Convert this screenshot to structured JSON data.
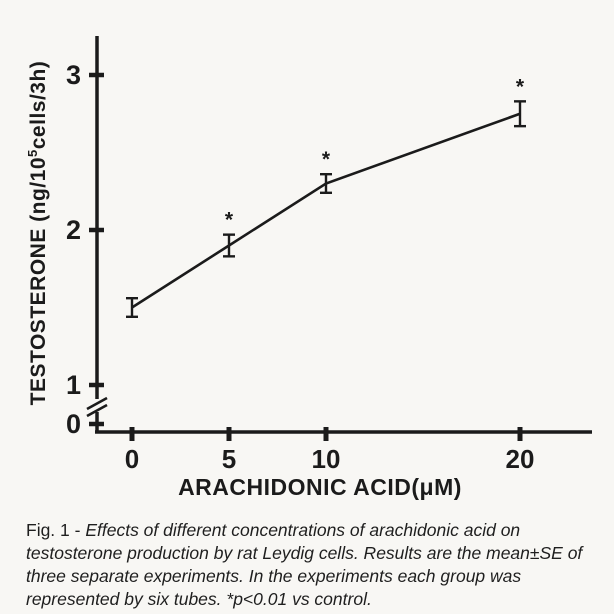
{
  "figure": {
    "caption_prefix": "Fig. 1 - ",
    "caption_text": "Effects of different concentrations of arachidonic acid on testosterone production by rat Leydig cells. Results are the mean±SE of three separate experiments. In the experiments each group was represented by six tubes. *p<0.01 vs control."
  },
  "chart_data": {
    "type": "line",
    "title": "",
    "xlabel": "ARACHIDONIC ACID(μM)",
    "ylabel": "TESTOSTERONE (ng/10⁵cells/3h)",
    "ylabel_parts": {
      "pre": "TESTOSTERONE (ng/10",
      "sup": "5",
      "post": "cells/3h)"
    },
    "x": [
      0,
      5,
      10,
      20
    ],
    "y": [
      1.5,
      1.9,
      2.3,
      2.75
    ],
    "yerr": [
      0.06,
      0.07,
      0.06,
      0.08
    ],
    "significant": [
      false,
      true,
      true,
      true
    ],
    "significance_marker": "*",
    "x_ticks": [
      0,
      5,
      10,
      20
    ],
    "y_ticks": [
      0,
      1,
      2,
      3
    ],
    "xlim": [
      0,
      22
    ],
    "ylim": [
      0,
      3.3
    ],
    "axis_break_between": [
      0,
      1
    ],
    "grid": false,
    "legend": null,
    "line_color": "#1b1b1b"
  }
}
